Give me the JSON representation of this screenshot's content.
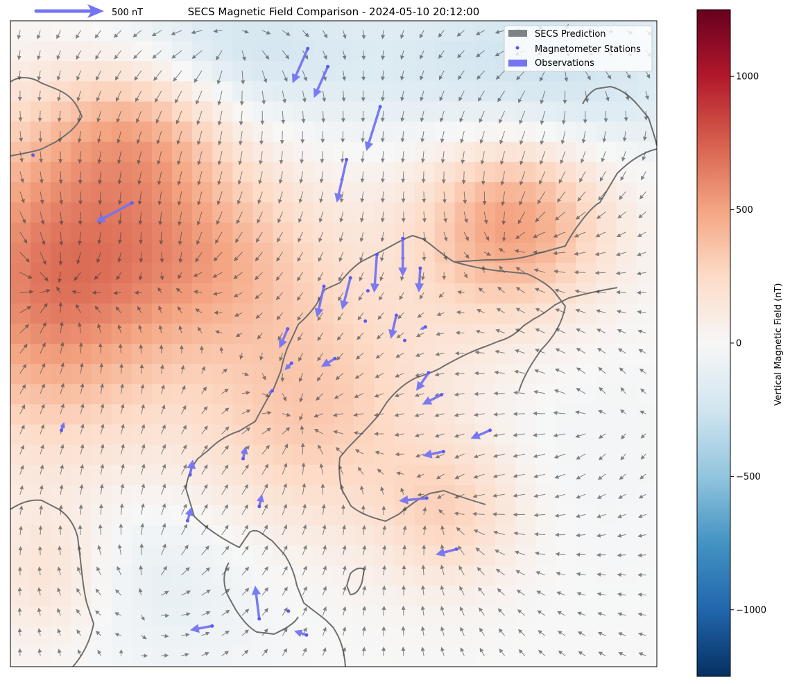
{
  "chart_data": {
    "type": "heatmap",
    "title": "SECS Magnetic Field Comparison - 2024-05-10 20:12:00",
    "scale_arrow_label": "500 nT",
    "legend": {
      "placement": "top-right",
      "entries": [
        {
          "name": "SECS Prediction",
          "color": "#7f8285"
        },
        {
          "name": "Magnetometer Stations",
          "color": "#5a5af2"
        },
        {
          "name": "Observations",
          "color": "#7474f2"
        }
      ]
    },
    "colorbar": {
      "label": "Vertical Magnetic Field (nT)",
      "range": [
        -1250,
        1250
      ],
      "ticks": [
        1000,
        500,
        0,
        -500,
        -1000
      ],
      "tick_labels": [
        "1000",
        "500",
        "0",
        "−500",
        "−1000"
      ],
      "colormap": "RdBu_r"
    },
    "field_blobs": [
      {
        "cx": 0.06,
        "cy": 0.4,
        "sx": 0.14,
        "sy": 0.17,
        "value": 640
      },
      {
        "cx": 0.2,
        "cy": 0.16,
        "sx": 0.1,
        "sy": 0.09,
        "value": 360
      },
      {
        "cx": 0.3,
        "cy": 0.36,
        "sx": 0.12,
        "sy": 0.1,
        "value": 330
      },
      {
        "cx": 0.78,
        "cy": 0.31,
        "sx": 0.1,
        "sy": 0.1,
        "value": 500
      },
      {
        "cx": 0.45,
        "cy": 0.62,
        "sx": 0.12,
        "sy": 0.13,
        "value": 250
      },
      {
        "cx": 0.68,
        "cy": 0.76,
        "sx": 0.08,
        "sy": 0.08,
        "value": 260
      },
      {
        "cx": 0.56,
        "cy": 0.5,
        "sx": 0.2,
        "sy": 0.16,
        "value": 120
      },
      {
        "cx": 0.06,
        "cy": 0.86,
        "sx": 0.07,
        "sy": 0.08,
        "value": 200
      },
      {
        "cx": 0.32,
        "cy": 0.05,
        "sx": 0.16,
        "sy": 0.08,
        "value": -260
      },
      {
        "cx": 0.82,
        "cy": 0.08,
        "sx": 0.18,
        "sy": 0.1,
        "value": -280
      },
      {
        "cx": 0.22,
        "cy": 0.86,
        "sx": 0.14,
        "sy": 0.1,
        "value": -120
      },
      {
        "cx": 0.84,
        "cy": 0.62,
        "sx": 0.12,
        "sy": 0.14,
        "value": -60
      }
    ],
    "field_sources": [
      {
        "x": 0.06,
        "y": 0.41,
        "strength": 1.0
      },
      {
        "x": 0.78,
        "y": 0.33,
        "strength": 0.8
      },
      {
        "x": 0.45,
        "y": 0.63,
        "strength": 0.7
      },
      {
        "x": 0.69,
        "y": 0.77,
        "strength": 0.55
      },
      {
        "x": 0.28,
        "y": 0.37,
        "strength": 0.55
      },
      {
        "x": 0.34,
        "y": 0.04,
        "strength": -0.8
      },
      {
        "x": 0.84,
        "y": 0.06,
        "strength": -0.7
      },
      {
        "x": 0.22,
        "y": 0.87,
        "strength": -0.5
      },
      {
        "x": 0.9,
        "y": 0.62,
        "strength": -0.45
      }
    ],
    "stations": [
      {
        "x": 0.46,
        "y": 0.043,
        "u": -22,
        "v": 50
      },
      {
        "x": 0.491,
        "y": 0.071,
        "u": -20,
        "v": 45
      },
      {
        "x": 0.572,
        "y": 0.133,
        "u": -20,
        "v": 64
      },
      {
        "x": 0.52,
        "y": 0.215,
        "u": -14,
        "v": 62
      },
      {
        "x": 0.188,
        "y": 0.282,
        "u": -52,
        "v": 28
      },
      {
        "x": 0.035,
        "y": 0.208,
        "u": 0,
        "v": 0
      },
      {
        "x": 0.607,
        "y": 0.337,
        "u": 0,
        "v": 55
      },
      {
        "x": 0.567,
        "y": 0.362,
        "u": -4,
        "v": 55
      },
      {
        "x": 0.634,
        "y": 0.383,
        "u": -2,
        "v": 35
      },
      {
        "x": 0.485,
        "y": 0.411,
        "u": -10,
        "v": 45
      },
      {
        "x": 0.526,
        "y": 0.398,
        "u": -12,
        "v": 46
      },
      {
        "x": 0.553,
        "y": 0.418,
        "u": 0,
        "v": 0
      },
      {
        "x": 0.429,
        "y": 0.477,
        "u": -12,
        "v": 28
      },
      {
        "x": 0.549,
        "y": 0.465,
        "u": 0,
        "v": 0
      },
      {
        "x": 0.597,
        "y": 0.456,
        "u": -8,
        "v": 34
      },
      {
        "x": 0.642,
        "y": 0.474,
        "u": -8,
        "v": 4
      },
      {
        "x": 0.61,
        "y": 0.495,
        "u": 0,
        "v": 0
      },
      {
        "x": 0.502,
        "y": 0.523,
        "u": -20,
        "v": 12
      },
      {
        "x": 0.435,
        "y": 0.53,
        "u": -10,
        "v": 10
      },
      {
        "x": 0.405,
        "y": 0.573,
        "u": -6,
        "v": 4
      },
      {
        "x": 0.647,
        "y": 0.545,
        "u": -18,
        "v": 26
      },
      {
        "x": 0.667,
        "y": 0.579,
        "u": -28,
        "v": 14
      },
      {
        "x": 0.742,
        "y": 0.634,
        "u": -28,
        "v": 12
      },
      {
        "x": 0.67,
        "y": 0.667,
        "u": -30,
        "v": 6
      },
      {
        "x": 0.36,
        "y": 0.678,
        "u": 4,
        "v": -18
      },
      {
        "x": 0.278,
        "y": 0.703,
        "u": 4,
        "v": -22
      },
      {
        "x": 0.079,
        "y": 0.634,
        "u": 4,
        "v": -12
      },
      {
        "x": 0.385,
        "y": 0.752,
        "u": 4,
        "v": -18
      },
      {
        "x": 0.274,
        "y": 0.774,
        "u": 6,
        "v": -20
      },
      {
        "x": 0.644,
        "y": 0.739,
        "u": -40,
        "v": 4
      },
      {
        "x": 0.69,
        "y": 0.818,
        "u": -30,
        "v": 8
      },
      {
        "x": 0.385,
        "y": 0.926,
        "u": -6,
        "v": -48
      },
      {
        "x": 0.43,
        "y": 0.914,
        "u": 0,
        "v": 0
      },
      {
        "x": 0.312,
        "y": 0.937,
        "u": -32,
        "v": 6
      },
      {
        "x": 0.458,
        "y": 0.951,
        "u": -18,
        "v": -6
      }
    ]
  }
}
